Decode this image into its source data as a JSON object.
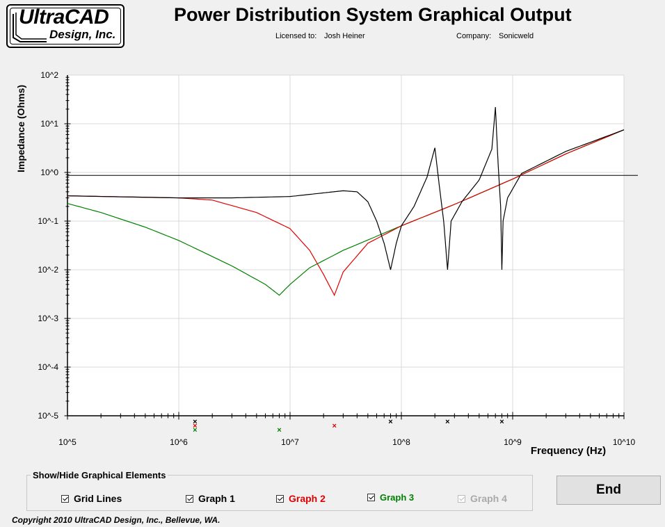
{
  "logo": {
    "line1": "UltraCAD",
    "line2": "Design, Inc."
  },
  "header": {
    "title": "Power Distribution System Graphical Output",
    "licensed_label": "Licensed to:",
    "licensed_value": "Josh Heiner",
    "company_label": "Company:",
    "company_value": "Sonicweld"
  },
  "chart_data": {
    "type": "line",
    "xlabel": "Frequency (Hz)",
    "ylabel": "Impedance (Ohms)",
    "x_scale": "log",
    "y_scale": "log",
    "xlim": [
      100000,
      10000000000
    ],
    "ylim": [
      1e-05,
      100
    ],
    "x_tick_labels": [
      "10^5",
      "10^6",
      "10^7",
      "10^8",
      "10^9",
      "10^10"
    ],
    "y_tick_labels": [
      "10^2",
      "10^1",
      "10^0",
      "10^-1",
      "10^-2",
      "10^-3",
      "10^-4",
      "10^-5"
    ],
    "grid": true,
    "target_impedance": 0.87,
    "series": [
      {
        "name": "Graph 1",
        "color": "#000000",
        "points": [
          [
            100000,
            0.33
          ],
          [
            1000000,
            0.3
          ],
          [
            3000000,
            0.3
          ],
          [
            10000000,
            0.32
          ],
          [
            20000000,
            0.38
          ],
          [
            30000000,
            0.42
          ],
          [
            40000000,
            0.4
          ],
          [
            50000000,
            0.25
          ],
          [
            60000000,
            0.1
          ],
          [
            70000000,
            0.035
          ],
          [
            80000000,
            0.01
          ],
          [
            90000000,
            0.035
          ],
          [
            100000000,
            0.08
          ],
          [
            130000000,
            0.2
          ],
          [
            170000000,
            0.8
          ],
          [
            200000000,
            3.2
          ],
          [
            220000000,
            0.5
          ],
          [
            240000000,
            0.1
          ],
          [
            260000000,
            0.01
          ],
          [
            280000000,
            0.1
          ],
          [
            350000000,
            0.25
          ],
          [
            500000000,
            0.7
          ],
          [
            650000000,
            3
          ],
          [
            700000000,
            22
          ],
          [
            740000000,
            1.5
          ],
          [
            780000000,
            0.2
          ],
          [
            800000000,
            0.01
          ],
          [
            820000000,
            0.1
          ],
          [
            900000000,
            0.3
          ],
          [
            1200000000,
            0.95
          ],
          [
            3000000000,
            2.7
          ],
          [
            10000000000,
            7.5
          ]
        ]
      },
      {
        "name": "Graph 2",
        "color": "#e00000",
        "points": [
          [
            100000,
            0.33
          ],
          [
            1000000,
            0.3
          ],
          [
            2000000,
            0.27
          ],
          [
            5000000,
            0.15
          ],
          [
            10000000,
            0.07
          ],
          [
            15000000,
            0.025
          ],
          [
            20000000,
            0.008
          ],
          [
            25000000,
            0.003
          ],
          [
            30000000,
            0.009
          ],
          [
            50000000,
            0.035
          ],
          [
            100000000,
            0.08
          ],
          [
            300000000,
            0.22
          ],
          [
            1000000000,
            0.73
          ],
          [
            3000000000,
            2.4
          ],
          [
            10000000000,
            7.5
          ]
        ]
      },
      {
        "name": "Graph 3",
        "color": "#008000",
        "points": [
          [
            100000,
            0.23
          ],
          [
            200000,
            0.15
          ],
          [
            500000,
            0.075
          ],
          [
            1000000,
            0.04
          ],
          [
            3000000,
            0.012
          ],
          [
            6000000,
            0.005
          ],
          [
            8000000,
            0.003
          ],
          [
            10000000,
            0.005
          ],
          [
            15000000,
            0.011
          ],
          [
            30000000,
            0.025
          ],
          [
            100000000,
            0.08
          ],
          [
            300000000,
            0.22
          ],
          [
            1000000000,
            0.73
          ],
          [
            3000000000,
            2.4
          ],
          [
            10000000000,
            7.5
          ]
        ]
      }
    ],
    "resonance_markers": [
      {
        "x": 1400000,
        "color": "#000000",
        "row": 0
      },
      {
        "x": 1400000,
        "color": "#e00000",
        "row": 1
      },
      {
        "x": 1400000,
        "color": "#008000",
        "row": 2
      },
      {
        "x": 8000000,
        "color": "#008000",
        "row": 2
      },
      {
        "x": 25000000,
        "color": "#e00000",
        "row": 1
      },
      {
        "x": 80000000,
        "color": "#000000",
        "row": 0
      },
      {
        "x": 260000000,
        "color": "#000000",
        "row": 0
      },
      {
        "x": 800000000,
        "color": "#000000",
        "row": 0
      }
    ]
  },
  "controls": {
    "group_title": "Show/Hide Graphical Elements",
    "grid_lines": "Grid Lines",
    "graph1": "Graph 1",
    "graph2": "Graph 2",
    "graph3": "Graph 3",
    "graph4": "Graph 4",
    "graph2_color": "#e00000",
    "graph3_color": "#008000",
    "graph4_color": "#aaaaaa",
    "end_label": "End"
  },
  "footer": {
    "copyright": "Copyright 2010 UltraCAD Design, Inc., Bellevue, WA."
  }
}
